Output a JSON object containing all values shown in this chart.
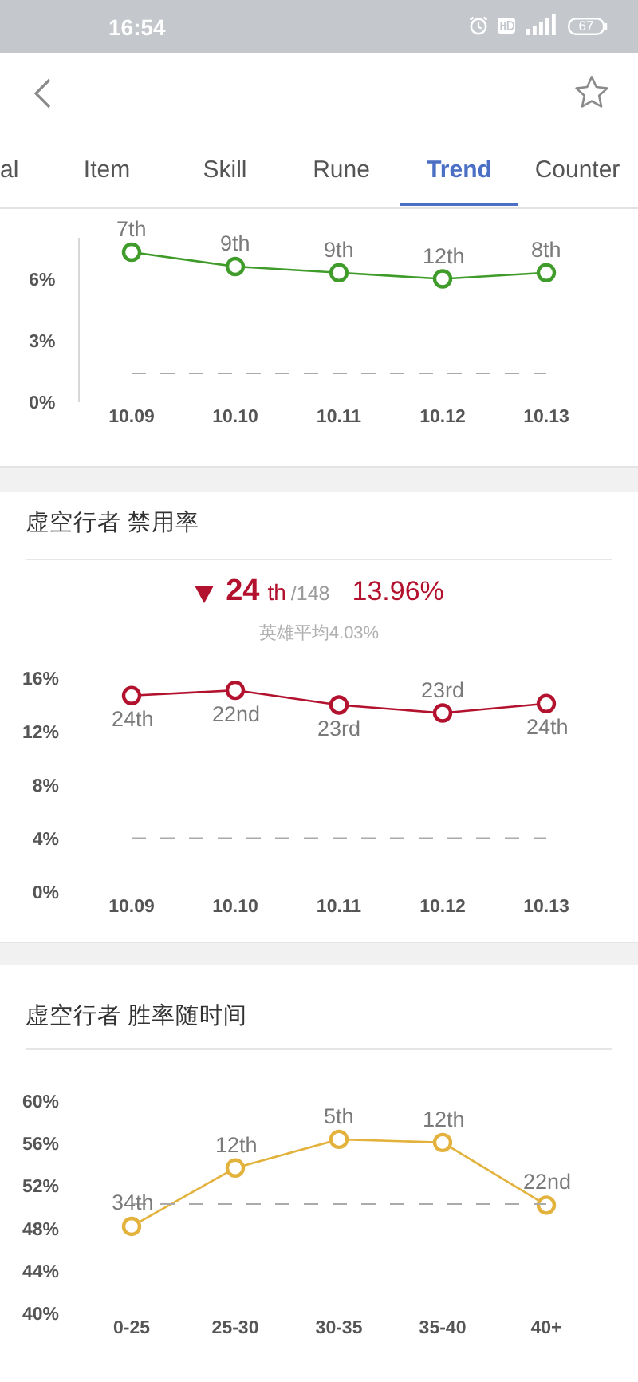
{
  "chart_data": [
    {
      "type": "other",
      "annotations": [
        "16:54",
        "67",
        "al",
        "Item",
        "Skill",
        "Rune",
        "Trend",
        "Counter"
      ]
    },
    {
      "type": "line",
      "categories": [
        "10.09",
        "10.10",
        "10.11",
        "10.12",
        "10.13"
      ],
      "series": [
        {
          "color": "#3f9c2a",
          "values": [
            7.3,
            6.6,
            6.3,
            6.0,
            6.3
          ]
        }
      ],
      "annotations": [
        {
          "text": "7th",
          "x": "10.09",
          "y": 7.3
        },
        {
          "text": "9th",
          "x": "10.10",
          "y": 6.6
        },
        {
          "text": "9th",
          "x": "10.11",
          "y": 6.3
        },
        {
          "text": "12th",
          "x": "10.12",
          "y": 6.0
        },
        {
          "text": "8th",
          "x": "10.13",
          "y": 6.3
        }
      ],
      "ylim": [
        0,
        8
      ],
      "yticks": [
        {
          "value": 0,
          "label": "0%"
        },
        {
          "value": 3,
          "label": "3%"
        },
        {
          "value": 6,
          "label": "6%"
        }
      ],
      "ref_lines": [
        {
          "axis": "y",
          "value": 1.4,
          "color": "#aaaaaa",
          "line_style": "dashed"
        }
      ],
      "marker": "circle",
      "line_style": "solid"
    },
    {
      "type": "line",
      "title": "虚空行者 禁用率",
      "annotations": [
        "24",
        "th",
        "/148",
        "13.96%",
        "英雄平均4.03%",
        {
          "text": "24th",
          "x": "10.09",
          "y": 14.7
        },
        {
          "text": "22nd",
          "x": "10.10",
          "y": 15.1
        },
        {
          "text": "23rd",
          "x": "10.11",
          "y": 14.0
        },
        {
          "text": "23rd",
          "x": "10.12",
          "y": 13.4
        },
        {
          "text": "24th",
          "x": "10.13",
          "y": 14.1
        }
      ],
      "categories": [
        "10.09",
        "10.10",
        "10.11",
        "10.12",
        "10.13"
      ],
      "series": [
        {
          "color": "#b3122e",
          "values": [
            14.7,
            15.1,
            14.0,
            13.4,
            14.1
          ]
        }
      ],
      "ylim": [
        0,
        16
      ],
      "yticks": [
        {
          "value": 0,
          "label": "0%"
        },
        {
          "value": 4,
          "label": "4%"
        },
        {
          "value": 8,
          "label": "8%"
        },
        {
          "value": 12,
          "label": "12%"
        },
        {
          "value": 16,
          "label": "16%"
        }
      ],
      "ref_lines": [
        {
          "axis": "y",
          "value": 4.03,
          "color": "#aaaaaa",
          "line_style": "dashed"
        }
      ],
      "marker": "circle",
      "line_style": "solid"
    },
    {
      "type": "line",
      "title": "虚空行者 胜率随时间",
      "categories": [
        "0-25",
        "25-30",
        "30-35",
        "35-40",
        "40+"
      ],
      "series": [
        {
          "color": "#e3b23c",
          "values": [
            48.2,
            53.7,
            56.4,
            56.1,
            50.2
          ]
        }
      ],
      "annotations": [
        {
          "text": "34th",
          "x": "0-25",
          "y": 48.2
        },
        {
          "text": "12th",
          "x": "25-30",
          "y": 53.7
        },
        {
          "text": "5th",
          "x": "30-35",
          "y": 56.4
        },
        {
          "text": "12th",
          "x": "35-40",
          "y": 56.1
        },
        {
          "text": "22nd",
          "x": "40+",
          "y": 50.2
        }
      ],
      "ylim": [
        40,
        60
      ],
      "yticks": [
        {
          "value": 40,
          "label": "40%"
        },
        {
          "value": 44,
          "label": "44%"
        },
        {
          "value": 48,
          "label": "48%"
        },
        {
          "value": 52,
          "label": "52%"
        },
        {
          "value": 56,
          "label": "56%"
        },
        {
          "value": 60,
          "label": "60%"
        }
      ],
      "ref_lines": [
        {
          "axis": "y",
          "value": 50.3,
          "color": "#aaaaaa",
          "line_style": "dashed"
        }
      ],
      "marker": "circle",
      "line_style": "solid"
    }
  ]
}
